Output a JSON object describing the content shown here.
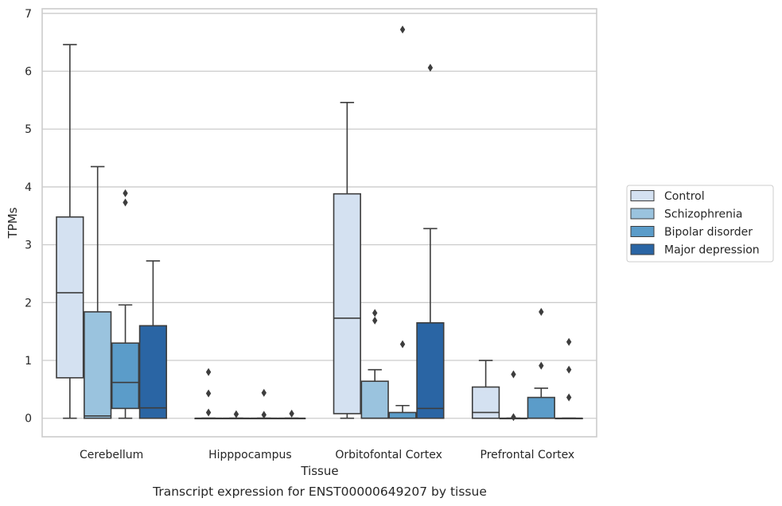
{
  "caption": "Transcript expression for ENST00000649207 by tissue",
  "chart_data": {
    "type": "box",
    "title": "",
    "xlabel": "Tissue",
    "ylabel": "TPMs",
    "ylim": [
      -0.32,
      7.08
    ],
    "yticks": [
      0,
      1,
      2,
      3,
      4,
      5,
      6,
      7
    ],
    "grid": "horizontal",
    "legend_position": "right",
    "categories": [
      "Cerebellum",
      "Hipppocampus",
      "Orbitofontal Cortex",
      "Prefrontal Cortex"
    ],
    "series": [
      {
        "name": "Control",
        "color": "#d4e1f1",
        "boxes": [
          {
            "whislo": 0,
            "q1": 0.7,
            "med": 2.17,
            "q3": 3.48,
            "whishi": 6.46,
            "fliers": []
          },
          {
            "whislo": 0,
            "q1": 0,
            "med": 0,
            "q3": 0,
            "whishi": 0,
            "fliers": [
              0.1,
              0.43,
              0.8
            ]
          },
          {
            "whislo": 0,
            "q1": 0.08,
            "med": 1.73,
            "q3": 3.88,
            "whishi": 5.46,
            "fliers": []
          },
          {
            "whislo": 0,
            "q1": 0,
            "med": 0.1,
            "q3": 0.54,
            "whishi": 1.0,
            "fliers": []
          }
        ]
      },
      {
        "name": "Schizophrenia",
        "color": "#9ac3de",
        "boxes": [
          {
            "whislo": 0,
            "q1": 0,
            "med": 0.04,
            "q3": 1.84,
            "whishi": 4.35,
            "fliers": []
          },
          {
            "whislo": 0,
            "q1": 0,
            "med": 0,
            "q3": 0,
            "whishi": 0,
            "fliers": [
              0.07
            ]
          },
          {
            "whislo": 0,
            "q1": 0,
            "med": 0,
            "q3": 0.64,
            "whishi": 0.84,
            "fliers": [
              1.69,
              1.82
            ]
          },
          {
            "whislo": 0,
            "q1": 0,
            "med": 0,
            "q3": 0,
            "whishi": 0,
            "fliers": [
              0.02,
              0.76
            ]
          }
        ]
      },
      {
        "name": "Bipolar disorder",
        "color": "#5b9cc9",
        "boxes": [
          {
            "whislo": 0,
            "q1": 0.17,
            "med": 0.62,
            "q3": 1.3,
            "whishi": 1.96,
            "fliers": [
              3.73,
              3.89
            ]
          },
          {
            "whislo": 0,
            "q1": 0,
            "med": 0,
            "q3": 0,
            "whishi": 0,
            "fliers": [
              0.06,
              0.44
            ]
          },
          {
            "whislo": 0,
            "q1": 0,
            "med": 0,
            "q3": 0.1,
            "whishi": 0.22,
            "fliers": [
              1.28,
              6.72
            ]
          },
          {
            "whislo": 0,
            "q1": 0,
            "med": 0,
            "q3": 0.36,
            "whishi": 0.52,
            "fliers": [
              0.91,
              1.84
            ]
          }
        ]
      },
      {
        "name": "Major depression",
        "color": "#2a65a4",
        "boxes": [
          {
            "whislo": 0,
            "q1": 0,
            "med": 0.18,
            "q3": 1.6,
            "whishi": 2.72,
            "fliers": []
          },
          {
            "whislo": 0,
            "q1": 0,
            "med": 0,
            "q3": 0,
            "whishi": 0,
            "fliers": [
              0.08
            ]
          },
          {
            "whislo": 0,
            "q1": 0,
            "med": 0.17,
            "q3": 1.65,
            "whishi": 3.28,
            "fliers": [
              6.06
            ]
          },
          {
            "whislo": 0,
            "q1": 0,
            "med": 0,
            "q3": 0,
            "whishi": 0,
            "fliers": [
              0.36,
              0.84,
              1.32
            ]
          }
        ]
      }
    ]
  }
}
